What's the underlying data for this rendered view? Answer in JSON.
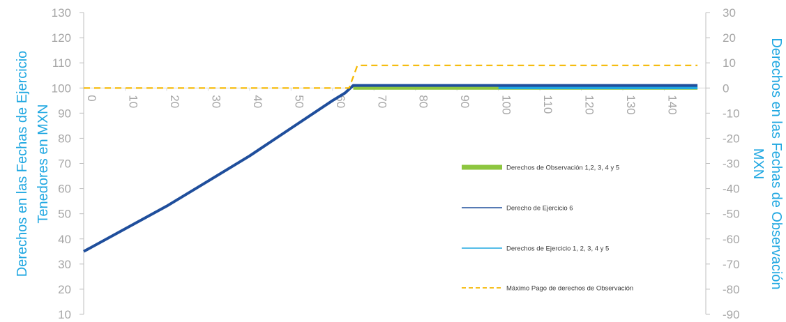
{
  "chart_data": {
    "type": "line",
    "title": "",
    "left_axis": {
      "label_lines": [
        "Derechos en las Fechas de Ejercicio",
        "Tenedores en MXN"
      ],
      "min": 10,
      "max": 130,
      "step": 10,
      "ticks": [
        "130",
        "120",
        "110",
        "100",
        "90",
        "80",
        "70",
        "60",
        "50",
        "40",
        "30",
        "20",
        "10"
      ]
    },
    "right_axis": {
      "label_lines": [
        "Derechos en las Fechas de Observación",
        "MXN"
      ],
      "min": -90,
      "max": 30,
      "step": 10,
      "ticks": [
        "30",
        "20",
        "10",
        "0",
        "-10",
        "-20",
        "-30",
        "-40",
        "-50",
        "-60",
        "-70",
        "-80",
        "-90"
      ]
    },
    "x_axis": {
      "min": 0,
      "max": 150,
      "ticks": [
        "0",
        "10",
        "20",
        "30",
        "40",
        "50",
        "60",
        "70",
        "80",
        "90",
        "100",
        "110",
        "120",
        "130",
        "140"
      ]
    },
    "grid": false,
    "legend_placement": "right",
    "colors": {
      "observacion": "#8dc63f",
      "ejercicio6": "#1f4e9c",
      "ejercicio15": "#1fa7e1",
      "maximo": "#f5b800",
      "axis_text": "#a6a6a6",
      "axis_title": "#1fa7e1"
    },
    "series": [
      {
        "name": "Derechos de Observación 1,2, 3, 4 y 5",
        "axis": "right",
        "x": [
          65,
          148
        ],
        "y": [
          0,
          0
        ]
      },
      {
        "name": "Derecho de Ejercicio 6",
        "axis": "left",
        "x": [
          0,
          10,
          20,
          30,
          40,
          50,
          60,
          63,
          65,
          148
        ],
        "y": [
          35,
          44,
          53,
          63,
          73,
          84,
          95,
          98,
          101,
          101
        ]
      },
      {
        "name": "Derechos de Ejercicio 1, 2, 3, 4 y 5",
        "axis": "right",
        "x": [
          100,
          148
        ],
        "y": [
          0,
          0
        ]
      },
      {
        "name": "Máximo Pago de derechos de Observación",
        "axis": "right",
        "x": [
          0,
          64,
          66,
          148
        ],
        "y": [
          0,
          0,
          9,
          9
        ]
      }
    ]
  }
}
